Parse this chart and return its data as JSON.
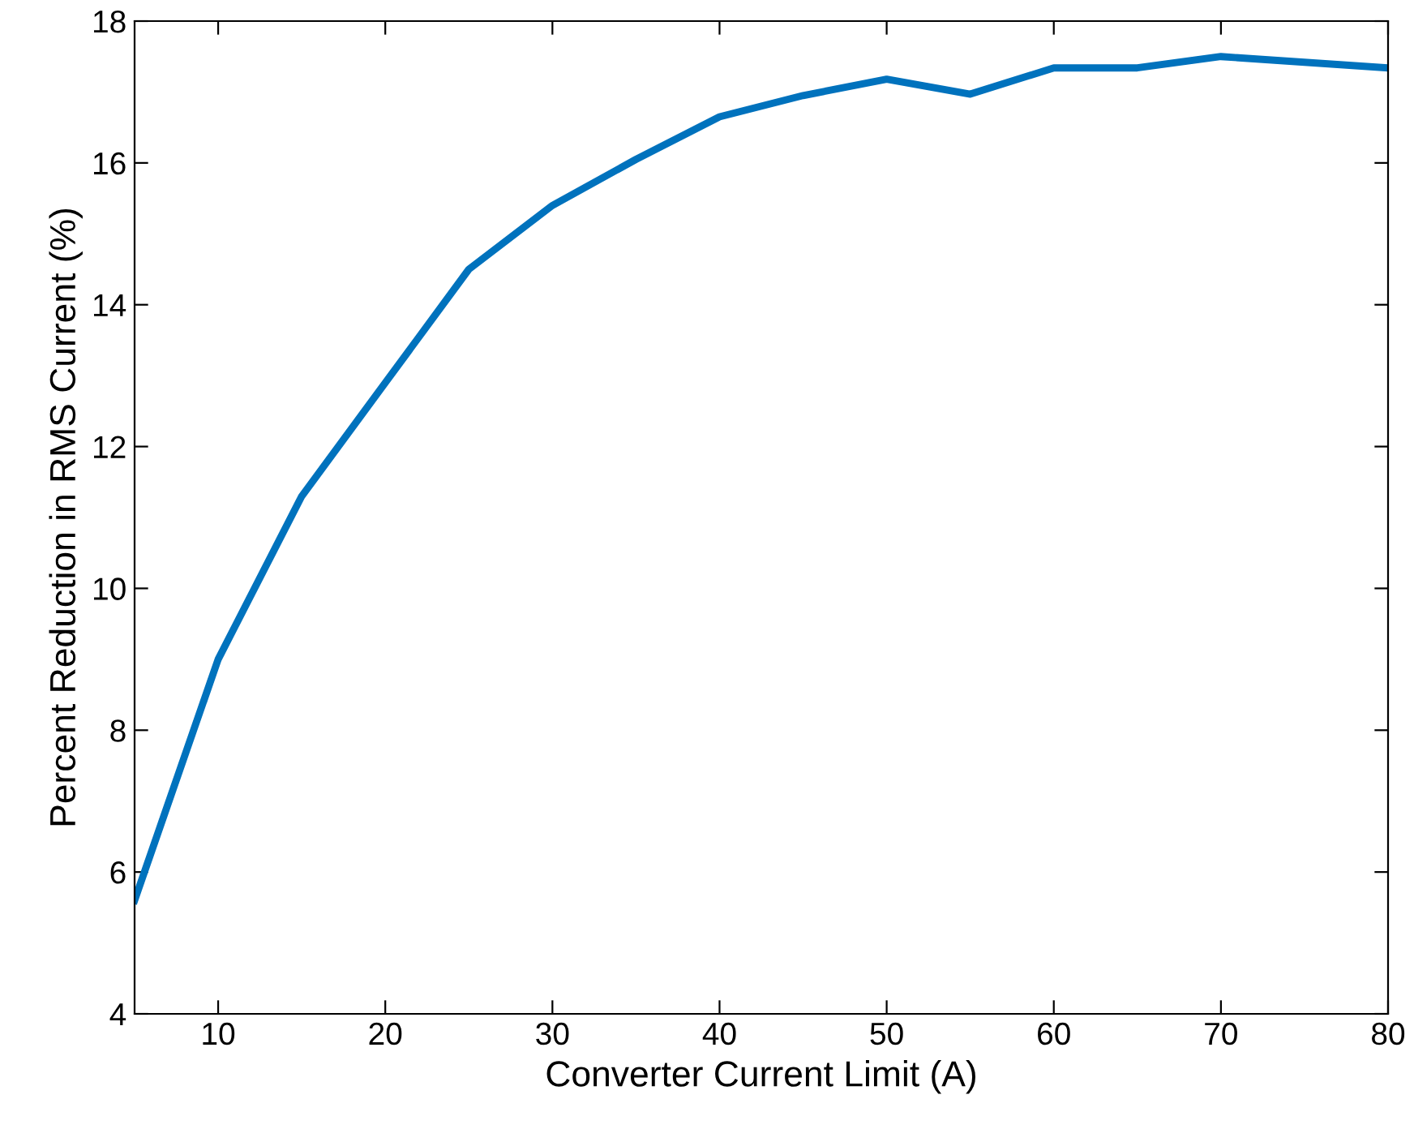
{
  "chart_data": {
    "type": "line",
    "xlabel": "Converter Current Limit (A)",
    "ylabel": "Percent Reduction in RMS Current (%)",
    "x": [
      5,
      10,
      15,
      20,
      25,
      30,
      35,
      40,
      45,
      50,
      55,
      60,
      65,
      70,
      80
    ],
    "series": [
      {
        "color": "#0072bd",
        "values": [
          5.6,
          9.0,
          11.3,
          12.9,
          14.5,
          15.4,
          16.05,
          16.65,
          16.95,
          17.18,
          16.97,
          17.34,
          17.34,
          17.5,
          17.34
        ]
      }
    ],
    "xlim": [
      5,
      80
    ],
    "xticks": [
      10,
      20,
      30,
      40,
      50,
      60,
      70,
      80
    ],
    "ylim": [
      4,
      18
    ],
    "yticks": [
      4,
      6,
      8,
      10,
      12,
      14,
      16,
      18
    ],
    "grid": false,
    "legend": false,
    "marker": "none",
    "line_style": "solid"
  }
}
